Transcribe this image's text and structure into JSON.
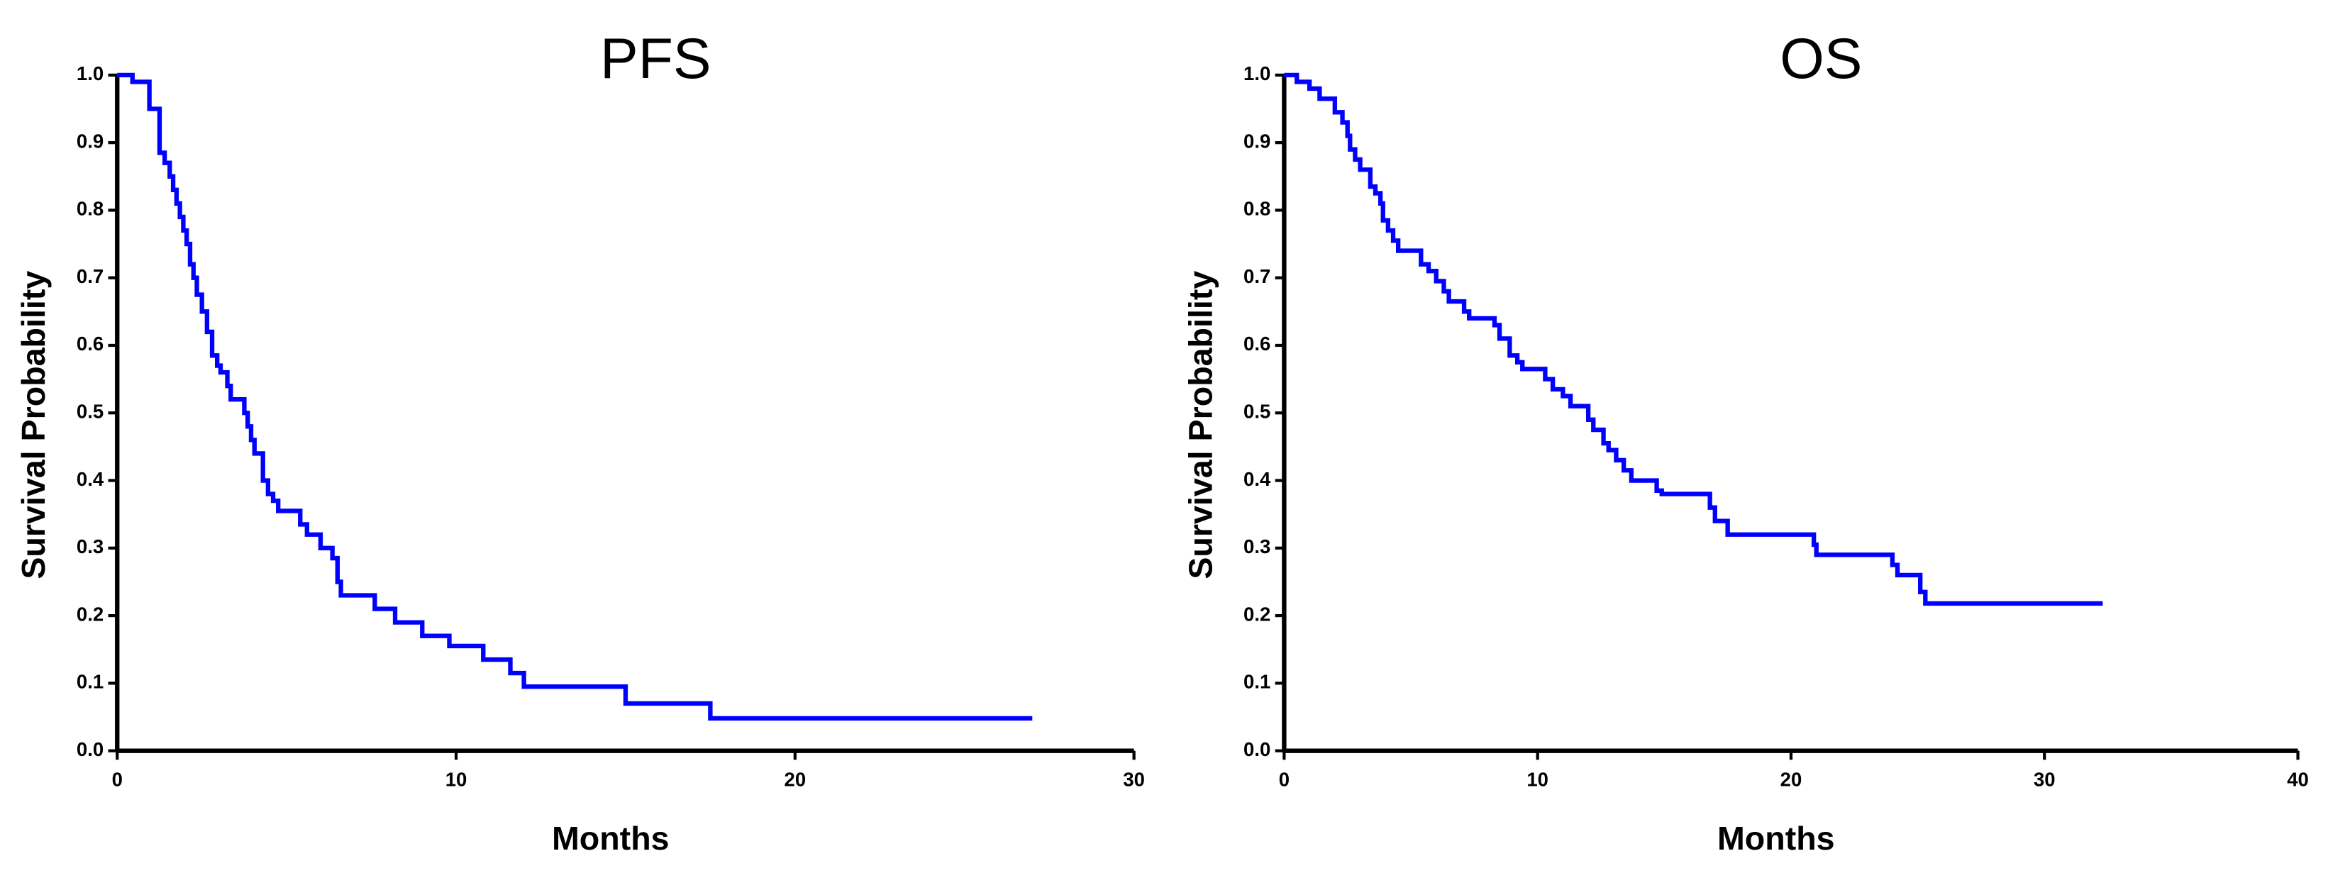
{
  "chart_data": [
    {
      "type": "line",
      "step": "post",
      "title": "PFS",
      "xlabel": "Months",
      "ylabel": "Survival Probability",
      "xlim": [
        0,
        30
      ],
      "xticks": [
        0,
        10,
        20,
        30
      ],
      "ylim": [
        0,
        1
      ],
      "yticks": [
        {
          "value": 0,
          "label": "0.0"
        },
        0.1,
        0.2,
        0.3,
        0.4,
        0.5,
        0.6,
        0.7,
        0.8,
        0.9,
        {
          "value": 1,
          "label": "1.0"
        }
      ],
      "series": [
        {
          "color": "#0000ff",
          "x": [
            0,
            0.45,
            0.95,
            1.25,
            1.4,
            1.55,
            1.65,
            1.75,
            1.85,
            1.95,
            2.05,
            2.15,
            2.25,
            2.35,
            2.5,
            2.65,
            2.8,
            2.95,
            3.05,
            3.25,
            3.35,
            3.75,
            3.85,
            3.95,
            4.05,
            4.3,
            4.45,
            4.6,
            4.75,
            5.4,
            5.6,
            6.0,
            6.35,
            6.5,
            6.6,
            7.6,
            8.2,
            9.0,
            9.8,
            10.8,
            11.6,
            12.0,
            15.0,
            17.5,
            27.0
          ],
          "values": [
            1.0,
            0.99,
            0.95,
            0.885,
            0.87,
            0.85,
            0.83,
            0.81,
            0.79,
            0.77,
            0.75,
            0.72,
            0.7,
            0.675,
            0.65,
            0.62,
            0.585,
            0.57,
            0.56,
            0.54,
            0.52,
            0.5,
            0.48,
            0.46,
            0.44,
            0.4,
            0.38,
            0.37,
            0.355,
            0.335,
            0.32,
            0.3,
            0.285,
            0.25,
            0.23,
            0.21,
            0.19,
            0.17,
            0.155,
            0.135,
            0.115,
            0.095,
            0.07,
            0.048,
            0.048
          ]
        }
      ]
    },
    {
      "type": "line",
      "step": "post",
      "title": "OS",
      "xlabel": "Months",
      "ylabel": "Survival Probability",
      "xlim": [
        0,
        40
      ],
      "xticks": [
        0,
        10,
        20,
        30,
        40
      ],
      "ylim": [
        0,
        1
      ],
      "yticks": [
        {
          "value": 0,
          "label": "0.0"
        },
        0.1,
        0.2,
        0.3,
        0.4,
        0.5,
        0.6,
        0.7,
        0.8,
        0.9,
        {
          "value": 1,
          "label": "1.0"
        }
      ],
      "series": [
        {
          "color": "#0000ff",
          "x": [
            0,
            0.5,
            1.0,
            1.4,
            2.0,
            2.3,
            2.5,
            2.6,
            2.8,
            3.0,
            3.4,
            3.6,
            3.8,
            3.9,
            4.1,
            4.3,
            4.5,
            5.4,
            5.7,
            6.0,
            6.3,
            6.5,
            7.1,
            7.3,
            8.3,
            8.5,
            8.9,
            9.2,
            9.4,
            10.3,
            10.6,
            11.0,
            11.3,
            12.0,
            12.2,
            12.6,
            12.8,
            13.1,
            13.4,
            13.7,
            14.7,
            14.9,
            16.8,
            17.0,
            17.5,
            20.9,
            21.0,
            24.0,
            24.2,
            25.1,
            25.3,
            32.3
          ],
          "values": [
            1.0,
            0.99,
            0.98,
            0.965,
            0.945,
            0.93,
            0.91,
            0.89,
            0.875,
            0.86,
            0.835,
            0.825,
            0.81,
            0.785,
            0.77,
            0.755,
            0.74,
            0.72,
            0.71,
            0.695,
            0.68,
            0.665,
            0.65,
            0.64,
            0.63,
            0.61,
            0.585,
            0.575,
            0.565,
            0.55,
            0.535,
            0.525,
            0.51,
            0.49,
            0.475,
            0.455,
            0.445,
            0.43,
            0.415,
            0.4,
            0.385,
            0.38,
            0.36,
            0.34,
            0.32,
            0.305,
            0.29,
            0.275,
            0.26,
            0.235,
            0.218,
            0.218
          ]
        }
      ]
    }
  ]
}
